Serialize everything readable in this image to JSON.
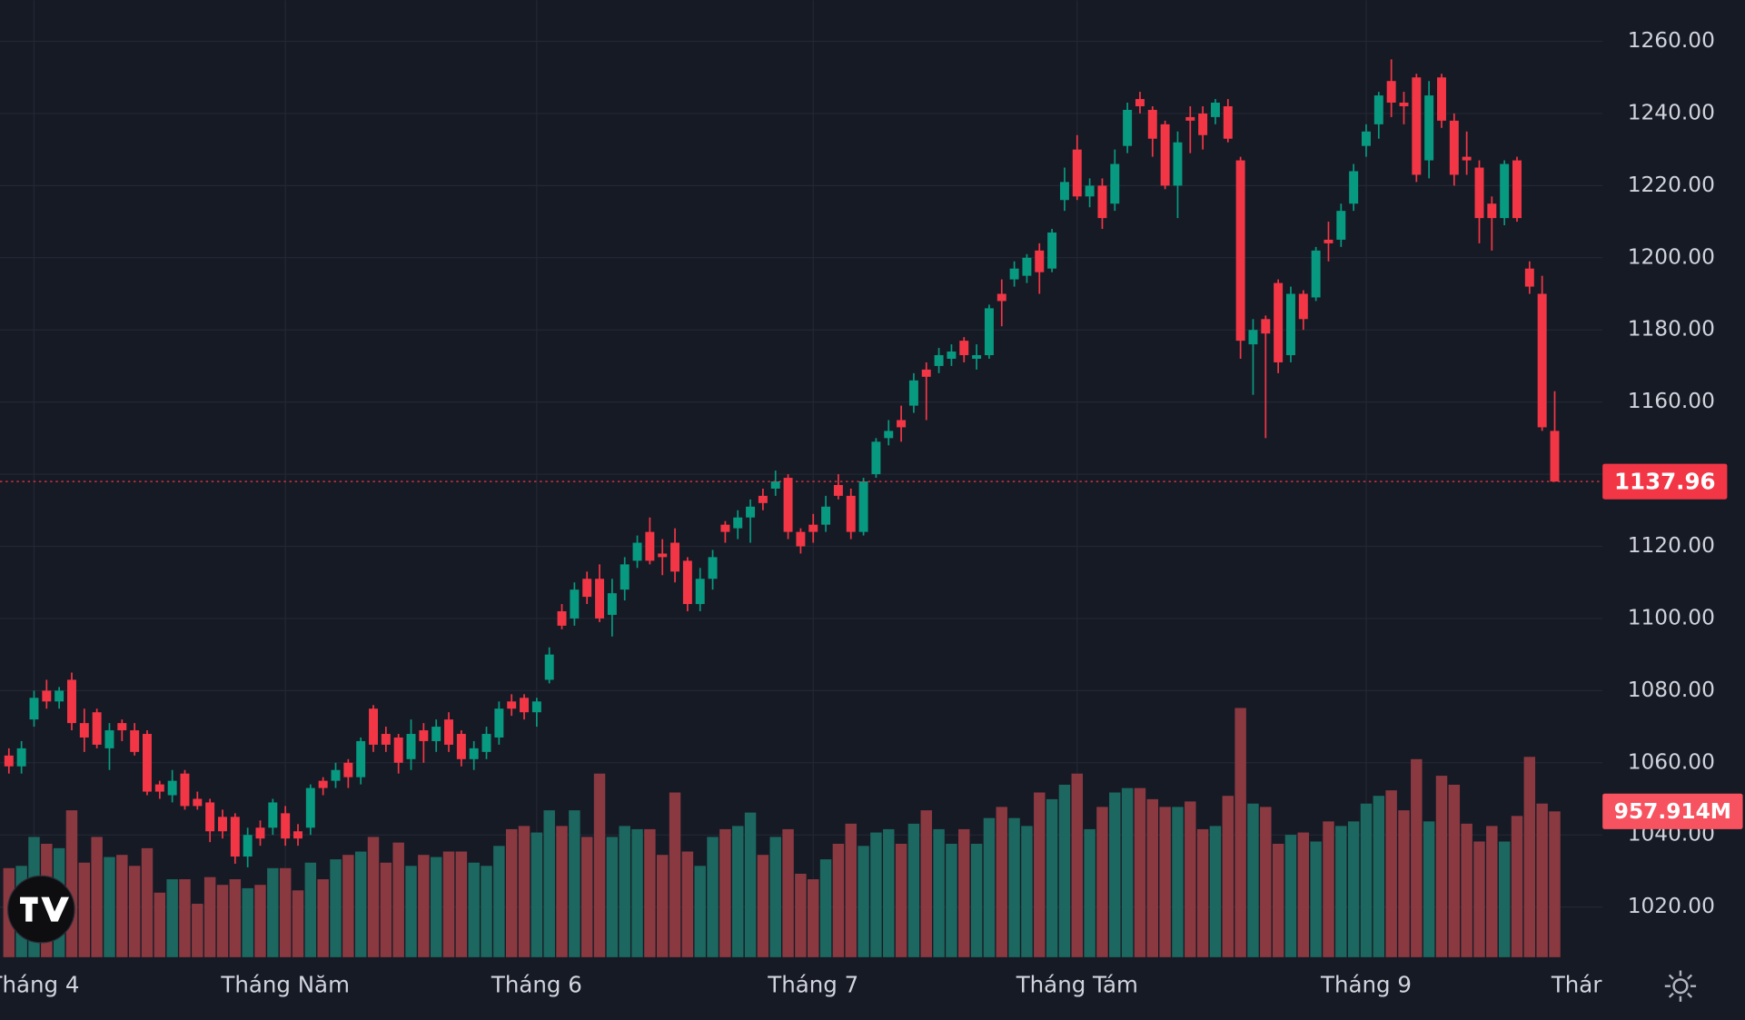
{
  "chart_data": {
    "type": "candlestick",
    "categories": [
      null,
      null,
      "Tháng 4",
      null,
      null,
      null,
      null,
      null,
      null,
      null,
      null,
      null,
      null,
      null,
      null,
      null,
      null,
      null,
      null,
      null,
      null,
      null,
      "Tháng Năm",
      null,
      null,
      null,
      null,
      null,
      null,
      null,
      null,
      null,
      null,
      null,
      null,
      null,
      null,
      null,
      null,
      null,
      null,
      null,
      "Tháng 6",
      null,
      null,
      null,
      null,
      null,
      null,
      null,
      null,
      null,
      null,
      null,
      null,
      null,
      null,
      null,
      null,
      null,
      null,
      null,
      null,
      null,
      "Tháng 7",
      null,
      null,
      null,
      null,
      null,
      null,
      null,
      null,
      null,
      null,
      null,
      null,
      null,
      null,
      null,
      null,
      null,
      null,
      null,
      null,
      "Tháng Tám",
      null,
      null,
      null,
      null,
      null,
      null,
      null,
      null,
      null,
      null,
      null,
      null,
      null,
      null,
      null,
      null,
      null,
      null,
      null,
      null,
      null,
      null,
      "Tháng 9",
      null,
      null,
      null,
      null,
      null,
      null,
      null,
      null,
      null,
      null,
      null,
      null,
      null,
      null,
      null
    ],
    "x_axis_overflow_label": "Thár",
    "open": [
      1062,
      1059,
      1072,
      1080,
      1077,
      1083,
      1071,
      1074,
      1064,
      1071,
      1069,
      1068,
      1054,
      1051,
      1057,
      1050,
      1049,
      1045,
      1045,
      1034,
      1042,
      1042,
      1046,
      1041,
      1042,
      1055,
      1055,
      1060,
      1056,
      1075,
      1068,
      1067,
      1061,
      1069,
      1066,
      1072,
      1068,
      1061,
      1063,
      1067,
      1077,
      1078,
      1074,
      1083,
      1102,
      1100,
      1111,
      1111,
      1101,
      1108,
      1116,
      1124,
      1118,
      1121,
      1116,
      1104,
      1111,
      1126,
      1125,
      1128,
      1134,
      1136,
      1139,
      1124,
      1126,
      1126,
      1137,
      1134,
      1124,
      1140,
      1150,
      1155,
      1159,
      1169,
      1170,
      1172,
      1177,
      1172,
      1173,
      1190,
      1194,
      1195,
      1202,
      1197,
      1216,
      1230,
      1217,
      1220,
      1215,
      1231,
      1244,
      1241,
      1237,
      1220,
      1239,
      1240,
      1239,
      1242,
      1227,
      1176,
      1183,
      1193,
      1173,
      1190,
      1189,
      1205,
      1205,
      1215,
      1231,
      1237,
      1249,
      1243,
      1250,
      1227,
      1250,
      1238,
      1228,
      1225,
      1215,
      1211,
      1227,
      1197,
      1190,
      1152
    ],
    "high": [
      1064,
      1066,
      1080,
      1083,
      1081,
      1085,
      1075,
      1075,
      1071,
      1072,
      1071,
      1069,
      1055,
      1058,
      1058,
      1052,
      1050,
      1047,
      1046,
      1042,
      1044,
      1050,
      1048,
      1043,
      1054,
      1056,
      1060,
      1061,
      1067,
      1076,
      1070,
      1068,
      1072,
      1071,
      1072,
      1074,
      1069,
      1066,
      1070,
      1077,
      1079,
      1079,
      1078,
      1092,
      1104,
      1110,
      1113,
      1115,
      1111,
      1117,
      1123,
      1128,
      1122,
      1125,
      1117,
      1114,
      1119,
      1127,
      1130,
      1133,
      1136,
      1141,
      1140,
      1125,
      1129,
      1134,
      1140,
      1136,
      1139,
      1150,
      1155,
      1159,
      1168,
      1171,
      1175,
      1176,
      1178,
      1176,
      1187,
      1194,
      1199,
      1201,
      1204,
      1208,
      1225,
      1234,
      1222,
      1222,
      1230,
      1243,
      1246,
      1242,
      1238,
      1235,
      1242,
      1242,
      1244,
      1244,
      1228,
      1183,
      1184,
      1194,
      1192,
      1191,
      1203,
      1210,
      1215,
      1226,
      1237,
      1246,
      1255,
      1246,
      1251,
      1249,
      1251,
      1240,
      1235,
      1227,
      1217,
      1227,
      1228,
      1199,
      1195,
      1163
    ],
    "low": [
      1057,
      1057,
      1070,
      1075,
      1075,
      1069,
      1063,
      1064,
      1058,
      1066,
      1062,
      1051,
      1050,
      1049,
      1047,
      1047,
      1038,
      1039,
      1032,
      1031,
      1037,
      1040,
      1037,
      1037,
      1040,
      1051,
      1053,
      1053,
      1054,
      1063,
      1063,
      1057,
      1058,
      1060,
      1063,
      1063,
      1059,
      1058,
      1061,
      1065,
      1073,
      1072,
      1070,
      1082,
      1097,
      1098,
      1104,
      1099,
      1095,
      1105,
      1114,
      1115,
      1112,
      1110,
      1102,
      1102,
      1108,
      1121,
      1122,
      1121,
      1130,
      1134,
      1122,
      1118,
      1121,
      1124,
      1133,
      1122,
      1123,
      1139,
      1148,
      1149,
      1157,
      1155,
      1168,
      1170,
      1171,
      1169,
      1172,
      1181,
      1192,
      1193,
      1190,
      1196,
      1213,
      1216,
      1214,
      1208,
      1213,
      1229,
      1240,
      1228,
      1219,
      1211,
      1229,
      1230,
      1237,
      1232,
      1172,
      1162,
      1150,
      1168,
      1171,
      1180,
      1188,
      1199,
      1203,
      1213,
      1228,
      1233,
      1239,
      1237,
      1221,
      1222,
      1236,
      1220,
      1223,
      1204,
      1202,
      1209,
      1210,
      1190,
      1152,
      1137.96
    ],
    "close": [
      1059,
      1064,
      1078,
      1077,
      1080,
      1071,
      1067,
      1065,
      1069,
      1069,
      1063,
      1052,
      1052,
      1055,
      1048,
      1048,
      1041,
      1041,
      1034,
      1040,
      1039,
      1049,
      1039,
      1039,
      1053,
      1053,
      1058,
      1056,
      1066,
      1065,
      1065,
      1060,
      1068,
      1066,
      1070,
      1065,
      1061,
      1064,
      1068,
      1075,
      1075,
      1074,
      1077,
      1090,
      1098,
      1108,
      1106,
      1100,
      1107,
      1115,
      1121,
      1116,
      1117,
      1113,
      1104,
      1111,
      1117,
      1124,
      1128,
      1131,
      1132,
      1138,
      1124,
      1120,
      1124,
      1131,
      1134,
      1124,
      1138,
      1149,
      1152,
      1153,
      1166,
      1167,
      1173,
      1174,
      1173,
      1173,
      1186,
      1188,
      1197,
      1200,
      1196,
      1207,
      1221,
      1217,
      1220,
      1211,
      1226,
      1241,
      1242,
      1233,
      1220,
      1232,
      1238,
      1234,
      1243,
      1233,
      1177,
      1180,
      1179,
      1171,
      1190,
      1183,
      1202,
      1204,
      1213,
      1224,
      1235,
      1245,
      1243,
      1242,
      1223,
      1245,
      1238,
      1223,
      1227,
      1211,
      1211,
      1226,
      1211,
      1192,
      1153,
      1137.96
    ],
    "volume": [
      585,
      600,
      790,
      745,
      716,
      965,
      621,
      790,
      658,
      672,
      600,
      716,
      424,
      512,
      512,
      351,
      526,
      475,
      512,
      453,
      475,
      585,
      585,
      439,
      621,
      512,
      643,
      672,
      694,
      790,
      621,
      753,
      600,
      672,
      658,
      694,
      694,
      621,
      600,
      731,
      841,
      862,
      819,
      965,
      862,
      965,
      790,
      1206,
      790,
      862,
      841,
      841,
      672,
      1082,
      694,
      600,
      790,
      841,
      862,
      950,
      672,
      790,
      841,
      548,
      512,
      643,
      745,
      877,
      731,
      819,
      841,
      745,
      877,
      965,
      841,
      745,
      841,
      745,
      914,
      987,
      914,
      862,
      1082,
      1038,
      1133,
      1206,
      841,
      987,
      1082,
      1111,
      1111,
      1038,
      987,
      987,
      1023,
      841,
      862,
      1060,
      1637,
      1009,
      987,
      745,
      804,
      819,
      760,
      892,
      862,
      892,
      1009,
      1060,
      1096,
      965,
      1301,
      892,
      1192,
      1133,
      877,
      760,
      862,
      760,
      928,
      1316,
      1009,
      957.914
    ],
    "volume_last_label": "957.914M",
    "ylim": [
      1006.1,
      1271.4
    ],
    "yticks": [
      {
        "value": 1020,
        "label": "1020.00"
      },
      {
        "value": 1040,
        "label": "1040.00"
      },
      {
        "value": 1060,
        "label": "1060.00"
      },
      {
        "value": 1080,
        "label": "1080.00"
      },
      {
        "value": 1100,
        "label": "1100.00"
      },
      {
        "value": 1120,
        "label": "1120.00"
      },
      {
        "value": 1140,
        "label": "1140.00"
      },
      {
        "value": 1160,
        "label": "1160.00"
      },
      {
        "value": 1180,
        "label": "1180.00"
      },
      {
        "value": 1200,
        "label": "1200.00"
      },
      {
        "value": 1220,
        "label": "1220.00"
      },
      {
        "value": 1240,
        "label": "1240.00"
      },
      {
        "value": 1260,
        "label": "1260.00"
      }
    ],
    "volume_lim": [
      0,
      6287
    ],
    "grid": true,
    "up_color": "#089981",
    "down_color": "#f23645",
    "volume_up_color": "#1c675f",
    "volume_down_color": "#8a3941",
    "last_price_color": "#f23645",
    "last_volume_color": "#f7525f"
  }
}
